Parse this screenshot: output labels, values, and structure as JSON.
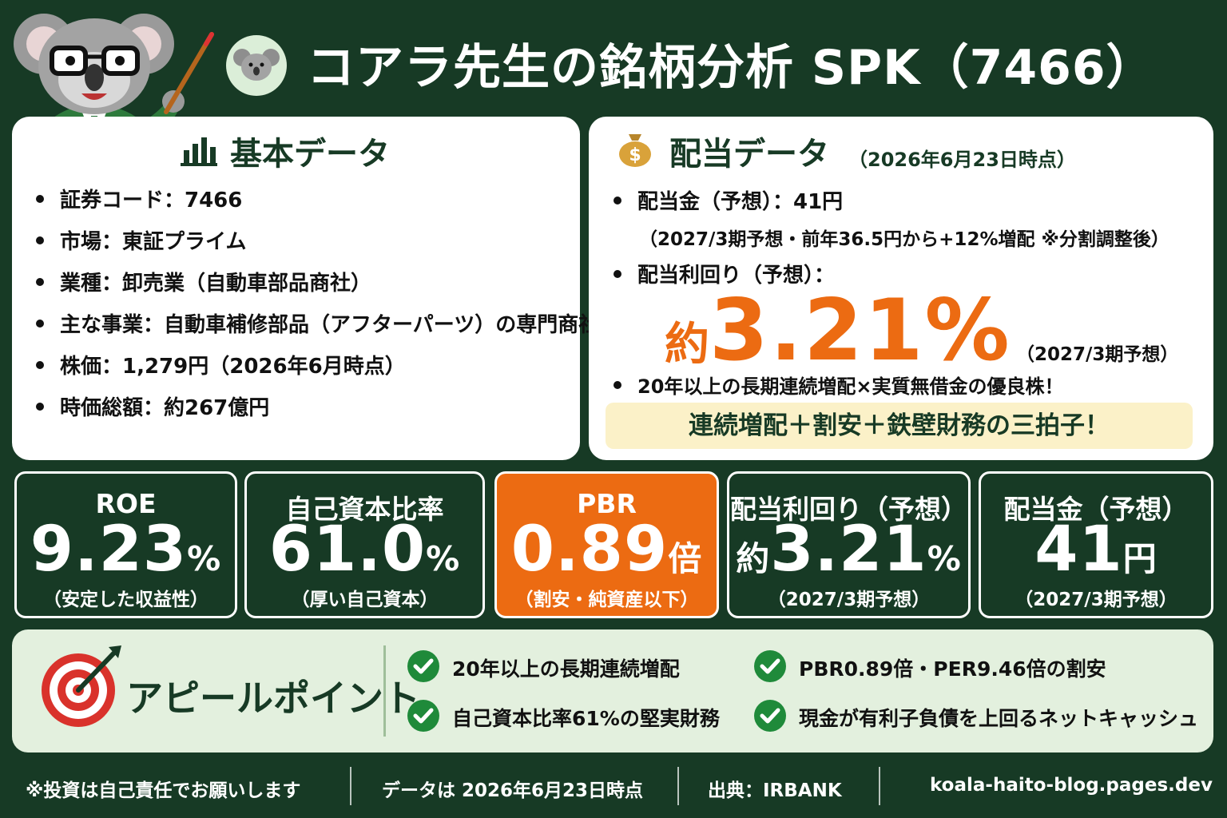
{
  "header": {
    "title": "コアラ先生の銘柄分析  SPK（7466）"
  },
  "basic": {
    "title": "基本データ",
    "items": [
      "証券コード：7466",
      "市場：東証プライム",
      "業種：卸売業（自動車部品商社）",
      "主な事業：自動車補修部品（アフターパーツ）の専門商社",
      "株価：1,279円（2026年6月時点）",
      "時価総額：約267億円"
    ]
  },
  "dividend": {
    "title": "配当データ",
    "as_of": "（2026年6月23日時点）",
    "amount_line": "配当金（予想）：41円",
    "amount_note": "（2027/3期予想・前年36.5円から+12%増配 ※分割調整後）",
    "yield_label": "配当利回り（予想）：",
    "yield_prefix": "約",
    "yield_value": "3.21%",
    "yield_note": "（2027/3期予想）",
    "extra": "20年以上の長期連続増配×実質無借金の優良株！",
    "banner": "連続増配＋割安＋鉄壁財務の三拍子！"
  },
  "metrics": [
    {
      "label": "ROE",
      "value": "9.23",
      "unit": "%",
      "sub": "（安定した収益性）"
    },
    {
      "label": "自己資本比率",
      "value": "61.0",
      "unit": "%",
      "sub": "（厚い自己資本）"
    },
    {
      "label": "PBR",
      "value": "0.89",
      "unit": "倍",
      "sub": "（割安・純資産以下）"
    },
    {
      "label": "配当利回り（予想）",
      "prefix": "約",
      "value": "3.21",
      "unit": "%",
      "sub": "（2027/3期予想）"
    },
    {
      "label": "配当金（予想）",
      "value": "41",
      "unit": "円",
      "sub": "（2027/3期予想）"
    }
  ],
  "appeal": {
    "title": "アピールポイント",
    "points": [
      "20年以上の長期連続増配",
      "PBR0.89倍・PER9.46倍の割安",
      "自己資本比率61%の堅実財務",
      "現金が有利子負債を上回るネットキャッシュ"
    ]
  },
  "footer": {
    "disclaimer": "※投資は自己責任でお願いします",
    "date": "データは 2026年6月23日時点",
    "source": "出典：IRBANK",
    "site": "koala-haito-blog.pages.dev"
  },
  "colors": {
    "background": "#173a25",
    "accent": "#ec6b12",
    "check": "#1f8a3a",
    "banner": "#fbf1c8"
  }
}
